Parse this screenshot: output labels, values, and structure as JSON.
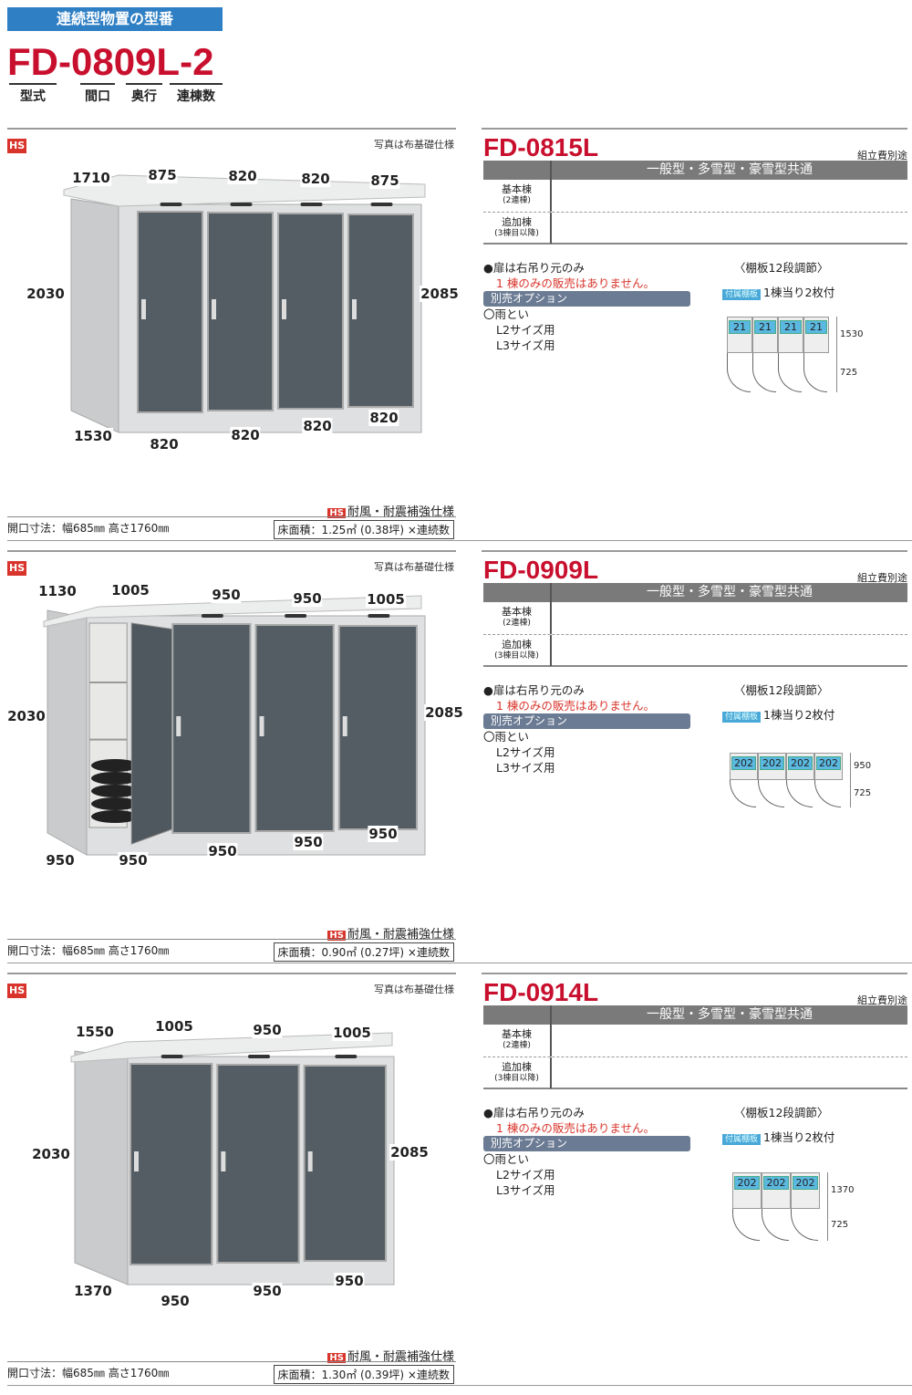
{
  "header": {
    "banner": "連続型物置の型番",
    "model_parts": [
      "FD-",
      "08",
      "09",
      "L-2"
    ],
    "part_labels": [
      "型式",
      "間口",
      "奥行",
      "連棟数"
    ]
  },
  "common": {
    "photo_note": "写真は布基礎仕様",
    "hs_badge": "HS",
    "hs_spec": "耐風・耐震補強仕様",
    "assembly_note": "組立費別途",
    "table_header": "一般型・多雪型・豪雪型共通",
    "row1_label": "基本棟",
    "row1_sub": "(2連棟)",
    "row2_label": "追加棟",
    "row2_sub": "(3棟目以降)",
    "shelf_title": "〈棚板12段調節〉",
    "shelf_tag": "付属棚板",
    "shelf_count": "1棟当り2枚付",
    "option_label": "別売オプション",
    "gutter": "〇雨とい",
    "gutter_l2": "L2サイズ用",
    "gutter_l3": "L3サイズ用",
    "accent_red": "#c8102e",
    "option_bar": "#6b7b93"
  },
  "sections": [
    {
      "title": "FD-0815L",
      "door_note": "●扉は右吊り元のみ",
      "warning": "1 棟のみの販売はありません。",
      "opening": "開口寸法：幅685㎜ 高さ1760㎜",
      "floor_area": "床面積：1.25㎡ (0.38坪) ×連続数",
      "dims": {
        "top": [
          "1710",
          "875",
          "820",
          "820",
          "875"
        ],
        "left": "2030",
        "right": "2085",
        "bottom": [
          "1530",
          "820",
          "820",
          "820",
          "820"
        ]
      },
      "shelf": {
        "labels": [
          "21",
          "21",
          "21",
          "21"
        ],
        "upper": "1530",
        "lower": "725"
      }
    },
    {
      "title": "FD-0909L",
      "door_note": "●扉は右吊り元のみ",
      "warning": "1 棟のみの販売はありません。",
      "opening": "開口寸法：幅685㎜ 高さ1760㎜",
      "floor_area": "床面積：0.90㎡ (0.27坪) ×連続数",
      "dims": {
        "top": [
          "1130",
          "1005",
          "950",
          "950",
          "1005"
        ],
        "left": "2030",
        "right": "2085",
        "bottom": [
          "950",
          "950",
          "950",
          "950",
          "950"
        ]
      },
      "shelf": {
        "labels": [
          "202",
          "202",
          "202",
          "202"
        ],
        "upper": "950",
        "lower": "725"
      }
    },
    {
      "title": "FD-0914L",
      "door_note": "●扉は右吊り元のみ",
      "warning": "1 棟のみの販売はありません。",
      "opening": "開口寸法：幅685㎜ 高さ1760㎜",
      "floor_area": "床面積：1.30㎡ (0.39坪) ×連続数",
      "dims": {
        "top": [
          "1550",
          "1005",
          "950",
          "1005"
        ],
        "left": "2030",
        "right": "2085",
        "bottom": [
          "1370",
          "950",
          "950",
          "950"
        ]
      },
      "shelf": {
        "labels": [
          "202",
          "202",
          "202"
        ],
        "upper": "1370",
        "lower": "725"
      }
    }
  ]
}
